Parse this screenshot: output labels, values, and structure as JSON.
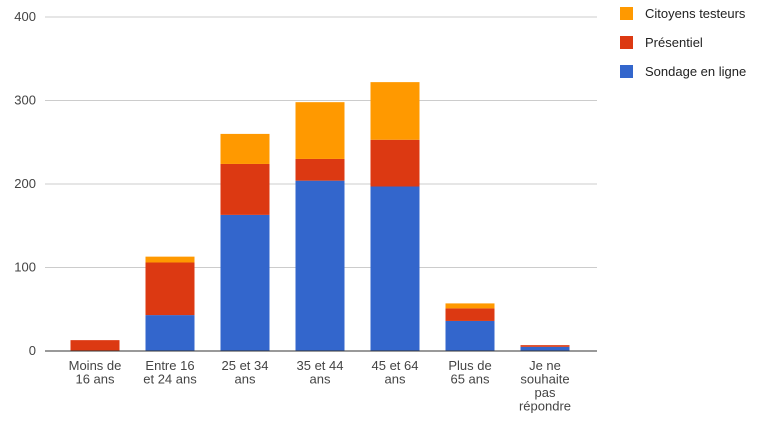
{
  "chart_data": {
    "type": "bar",
    "stacked": true,
    "title": "",
    "xlabel": "",
    "ylabel": "",
    "ylim": [
      0,
      400
    ],
    "yticks": [
      0,
      100,
      200,
      300,
      400
    ],
    "grid": true,
    "legend_position": "right",
    "categories": [
      [
        "Moins de",
        "16 ans"
      ],
      [
        "Entre 16",
        "et 24 ans"
      ],
      [
        "25 et 34",
        "ans"
      ],
      [
        "35 et 44",
        "ans"
      ],
      [
        "45 et 64",
        "ans"
      ],
      [
        "Plus de",
        "65 ans"
      ],
      [
        "Je ne",
        "souhaite",
        "pas",
        "répondre"
      ]
    ],
    "series": [
      {
        "name": "Sondage en ligne",
        "color": "#3366cc",
        "values": [
          0,
          43,
          163,
          204,
          197,
          36,
          5
        ]
      },
      {
        "name": "Présentiel",
        "color": "#dc3912",
        "values": [
          13,
          63,
          61,
          26,
          56,
          15,
          2
        ]
      },
      {
        "name": "Citoyens testeurs",
        "color": "#ff9900",
        "values": [
          0,
          7,
          36,
          68,
          69,
          6,
          0
        ]
      }
    ],
    "legend_order": [
      "Citoyens testeurs",
      "Présentiel",
      "Sondage en ligne"
    ]
  }
}
